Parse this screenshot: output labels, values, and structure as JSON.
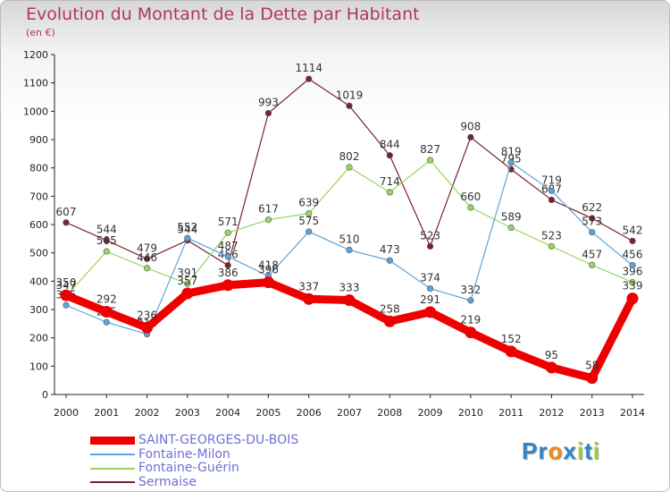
{
  "title": "Evolution du Montant de la Dette par Habitant",
  "unit_label": "(en €)",
  "brand": {
    "letters": [
      {
        "ch": "P",
        "color": "#2e86c9"
      },
      {
        "ch": "r",
        "color": "#2e86c9"
      },
      {
        "ch": "o",
        "color": "#f28a1c"
      },
      {
        "ch": "x",
        "color": "#2e86c9"
      },
      {
        "ch": "i",
        "color": "#9ccc3c"
      },
      {
        "ch": "t",
        "color": "#2e86c9"
      },
      {
        "ch": "i",
        "color": "#9ccc3c"
      }
    ]
  },
  "chart_data": {
    "type": "line",
    "title": "Evolution du Montant de la Dette par Habitant",
    "ylabel": "(en €)",
    "xlabel": "",
    "ylim": [
      0,
      1200
    ],
    "yticks": [
      0,
      100,
      200,
      300,
      400,
      500,
      600,
      700,
      800,
      900,
      1000,
      1100,
      1200
    ],
    "grid": false,
    "legend_position": "bottom-left",
    "x": [
      "2000",
      "2001",
      "2002",
      "2003",
      "2004",
      "2005",
      "2006",
      "2007",
      "2008",
      "2009",
      "2010",
      "2011",
      "2012",
      "2013",
      "2014"
    ],
    "series": [
      {
        "name": "SAINT-GEORGES-DU-BOIS",
        "color": "#ee0000",
        "width": 9,
        "values": [
          350,
          292,
          236,
          357,
          386,
          396,
          337,
          333,
          258,
          291,
          219,
          152,
          95,
          58,
          339
        ]
      },
      {
        "name": "Fontaine-Milon",
        "color": "#5ea3d9",
        "width": 1.2,
        "values": [
          315,
          255,
          213,
          552,
          487,
          418,
          575,
          510,
          473,
          374,
          332,
          819,
          719,
          573,
          456
        ]
      },
      {
        "name": "Fontaine-Guérin",
        "color": "#98d65e",
        "width": 1.2,
        "values": [
          347,
          505,
          446,
          391,
          571,
          617,
          639,
          802,
          714,
          827,
          660,
          589,
          523,
          457,
          396
        ]
      },
      {
        "name": "Sermaise",
        "color": "#7a2230",
        "width": 1.2,
        "values": [
          607,
          544,
          479,
          544,
          456,
          993,
          1114,
          1019,
          844,
          523,
          908,
          795,
          687,
          622,
          542
        ]
      }
    ]
  }
}
